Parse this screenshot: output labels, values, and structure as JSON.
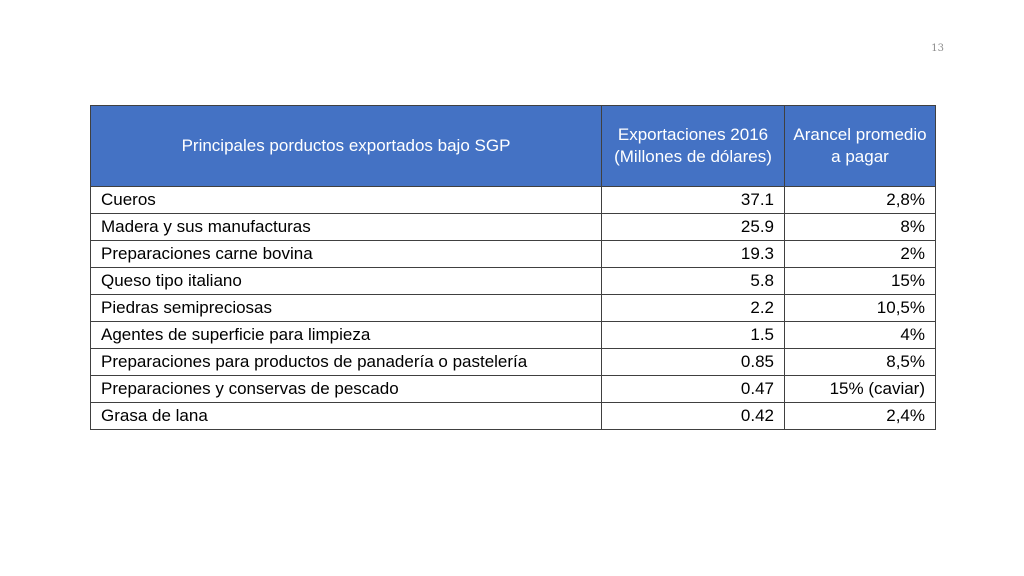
{
  "slide": {
    "number": "13"
  },
  "table": {
    "headers": [
      "Principales porductos exportados bajo SGP",
      "Exportaciones 2016 (Millones de dólares)",
      "Arancel promedio a pagar"
    ],
    "rows": [
      [
        "Cueros",
        "37.1",
        "2,8%"
      ],
      [
        "Madera y sus manufacturas",
        "25.9",
        "8%"
      ],
      [
        "Preparaciones carne bovina",
        "19.3",
        "2%"
      ],
      [
        "Queso tipo italiano",
        "5.8",
        "15%"
      ],
      [
        "Piedras semipreciosas",
        "2.2",
        "10,5%"
      ],
      [
        "Agentes de superficie para limpieza",
        "1.5",
        "4%"
      ],
      [
        "Preparaciones para productos de panadería o pastelería",
        "0.85",
        "8,5%"
      ],
      [
        "Preparaciones y conservas de pescado",
        "0.47",
        "15% (caviar)"
      ],
      [
        "Grasa de lana",
        "0.42",
        "2,4%"
      ]
    ]
  },
  "colors": {
    "header_background": "#4472c4",
    "header_text": "#ffffff",
    "border": "#404040"
  }
}
